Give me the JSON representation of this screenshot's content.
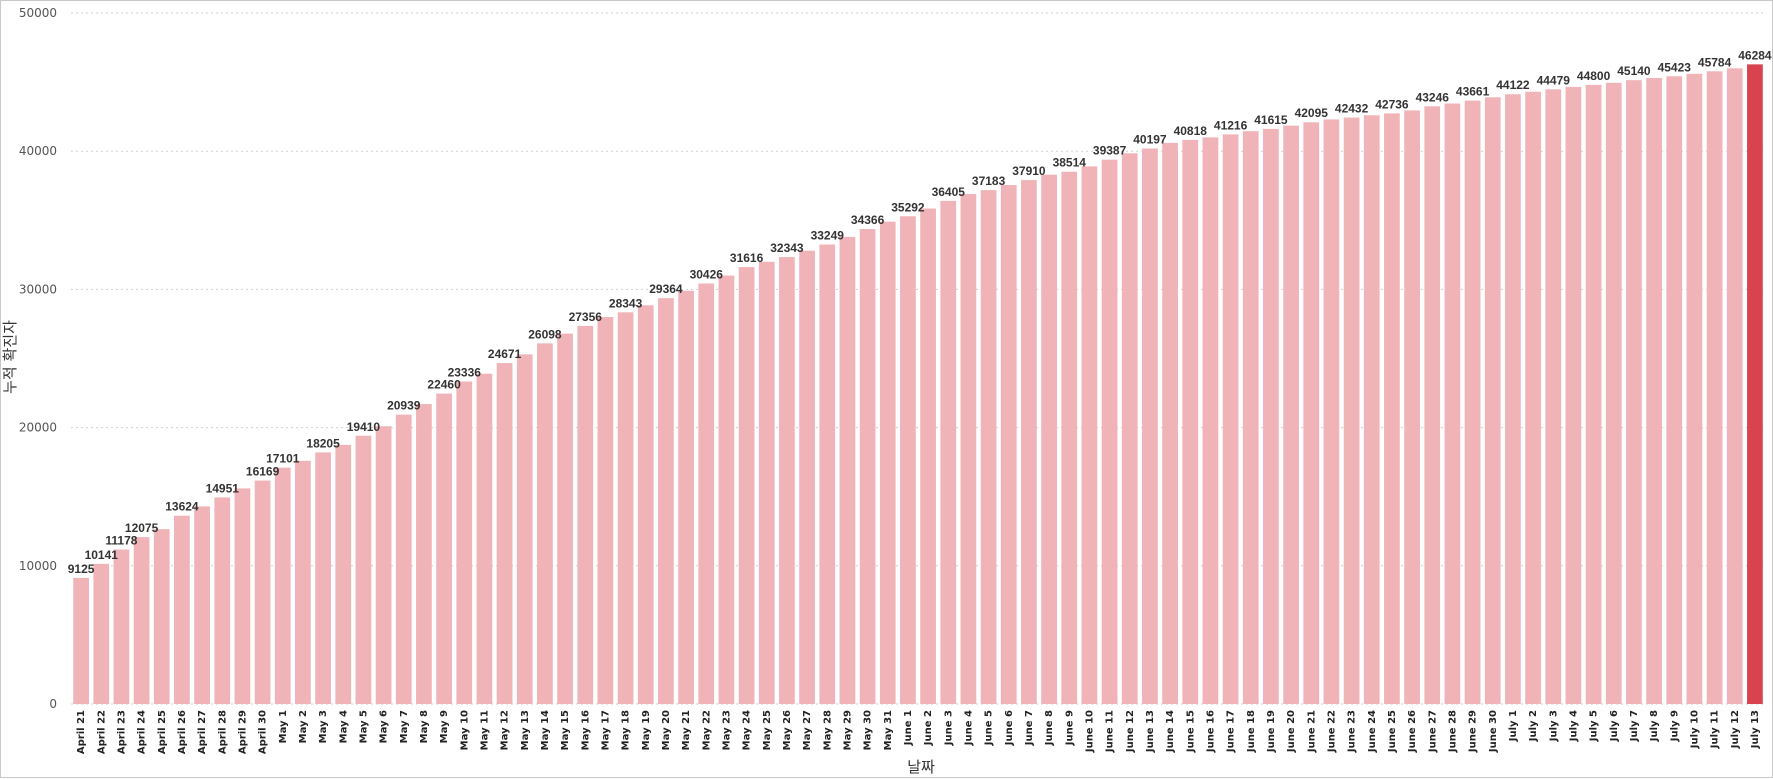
{
  "chart_data": {
    "type": "bar",
    "xlabel": "날짜",
    "ylabel": "누적 확진자",
    "ylim": [
      0,
      50000
    ],
    "yticks": [
      0,
      10000,
      20000,
      30000,
      40000,
      50000
    ],
    "grid": "horizontal dotted",
    "colors": {
      "bar": "#f0b3b8",
      "highlight": "#d9434f"
    },
    "highlight_index": 83,
    "categories": [
      "April 21",
      "April 22",
      "April 23",
      "April 24",
      "April 25",
      "April 26",
      "April 27",
      "April 28",
      "April 29",
      "April 30",
      "May 1",
      "May 2",
      "May 3",
      "May 4",
      "May 5",
      "May 6",
      "May 7",
      "May 8",
      "May 9",
      "May 10",
      "May 11",
      "May 12",
      "May 13",
      "May 14",
      "May 15",
      "May 16",
      "May 17",
      "May 18",
      "May 19",
      "May 20",
      "May 21",
      "May 22",
      "May 23",
      "May 24",
      "May 25",
      "May 26",
      "May 27",
      "May 28",
      "May 29",
      "May 30",
      "May 31",
      "June 1",
      "June 2",
      "June 3",
      "June 4",
      "June 5",
      "June 6",
      "June 7",
      "June 8",
      "June 9",
      "June 10",
      "June 11",
      "June 12",
      "June 13",
      "June 14",
      "June 15",
      "June 16",
      "June 17",
      "June 18",
      "June 19",
      "June 20",
      "June 21",
      "June 22",
      "June 23",
      "June 24",
      "June 25",
      "June 26",
      "June 27",
      "June 28",
      "June 29",
      "June 30",
      "July 1",
      "July 2",
      "July 3",
      "July 4",
      "July 5",
      "July 6",
      "July 7",
      "July 8",
      "July 9",
      "July 10",
      "July 11",
      "July 12",
      "July 13"
    ],
    "values": [
      9125,
      10141,
      11178,
      12075,
      12650,
      13624,
      14300,
      14951,
      15600,
      16169,
      17101,
      17600,
      18205,
      18750,
      19410,
      20100,
      20939,
      21700,
      22460,
      23336,
      23900,
      24671,
      25300,
      26098,
      26800,
      27356,
      28000,
      28343,
      28850,
      29364,
      29900,
      30426,
      31000,
      31616,
      32000,
      32343,
      32800,
      33249,
      33800,
      34366,
      34900,
      35292,
      35850,
      36405,
      36900,
      37183,
      37550,
      37910,
      38300,
      38514,
      38900,
      39387,
      39850,
      40197,
      40600,
      40818,
      41000,
      41216,
      41450,
      41615,
      41850,
      42095,
      42300,
      42432,
      42600,
      42736,
      42950,
      43246,
      43450,
      43661,
      43900,
      44122,
      44300,
      44479,
      44650,
      44800,
      44950,
      45140,
      45300,
      45423,
      45600,
      45784,
      46000,
      46284
    ],
    "data_labels": [
      {
        "index": 0,
        "text": "9125"
      },
      {
        "index": 1,
        "text": "10141"
      },
      {
        "index": 2,
        "text": "11178"
      },
      {
        "index": 3,
        "text": "12075"
      },
      {
        "index": 5,
        "text": "13624"
      },
      {
        "index": 7,
        "text": "14951"
      },
      {
        "index": 9,
        "text": "16169"
      },
      {
        "index": 10,
        "text": "17101"
      },
      {
        "index": 12,
        "text": "18205"
      },
      {
        "index": 14,
        "text": "19410"
      },
      {
        "index": 16,
        "text": "20939"
      },
      {
        "index": 18,
        "text": "22460"
      },
      {
        "index": 19,
        "text": "23336"
      },
      {
        "index": 21,
        "text": "24671"
      },
      {
        "index": 23,
        "text": "26098"
      },
      {
        "index": 25,
        "text": "27356"
      },
      {
        "index": 27,
        "text": "28343"
      },
      {
        "index": 29,
        "text": "29364"
      },
      {
        "index": 31,
        "text": "30426"
      },
      {
        "index": 33,
        "text": "31616"
      },
      {
        "index": 35,
        "text": "32343"
      },
      {
        "index": 37,
        "text": "33249"
      },
      {
        "index": 39,
        "text": "34366"
      },
      {
        "index": 41,
        "text": "35292"
      },
      {
        "index": 43,
        "text": "36405"
      },
      {
        "index": 45,
        "text": "37183"
      },
      {
        "index": 47,
        "text": "37910"
      },
      {
        "index": 49,
        "text": "38514"
      },
      {
        "index": 51,
        "text": "39387"
      },
      {
        "index": 53,
        "text": "40197"
      },
      {
        "index": 55,
        "text": "40818"
      },
      {
        "index": 57,
        "text": "41216"
      },
      {
        "index": 59,
        "text": "41615"
      },
      {
        "index": 61,
        "text": "42095"
      },
      {
        "index": 63,
        "text": "42432"
      },
      {
        "index": 65,
        "text": "42736"
      },
      {
        "index": 67,
        "text": "43246"
      },
      {
        "index": 69,
        "text": "43661"
      },
      {
        "index": 71,
        "text": "44122"
      },
      {
        "index": 73,
        "text": "44479"
      },
      {
        "index": 75,
        "text": "44800"
      },
      {
        "index": 77,
        "text": "45140"
      },
      {
        "index": 79,
        "text": "45423"
      },
      {
        "index": 81,
        "text": "45784"
      },
      {
        "index": 83,
        "text": "46284"
      }
    ]
  }
}
